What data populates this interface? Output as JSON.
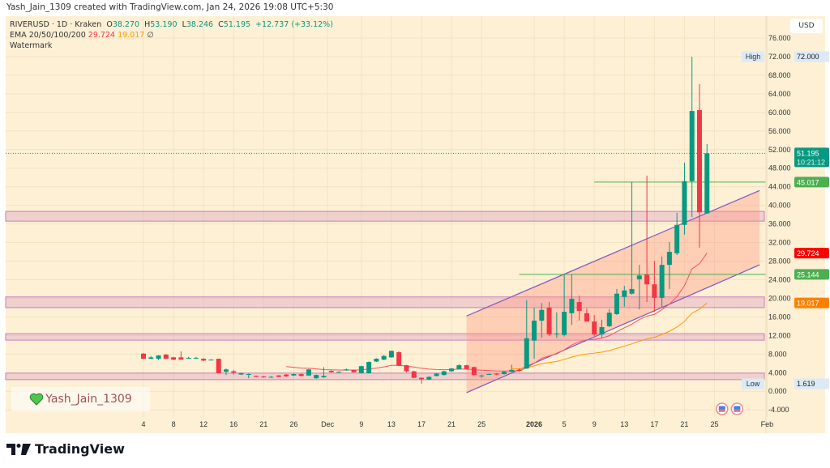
{
  "attribution": "Yash_Jain_1309 created with TradingView.com, Jan 24, 2026 19:08 UTC+5:30",
  "legend": {
    "symbol": "RIVERUSD · 1D · Kraken",
    "o_label": "O",
    "o": "38.270",
    "h_label": "H",
    "h": "53.190",
    "l_label": "L",
    "l": "38.246",
    "c_label": "C",
    "c": "51.195",
    "change": "+12.737 (+33.12%)",
    "ema_label": "EMA 20/50/100/200",
    "ema20": "29.724",
    "ema50": "19.017",
    "ema_rest": "∅",
    "watermark_label": "Watermark"
  },
  "watermark": {
    "icon": "green-heart-icon",
    "text": "Yash_Jain_1309"
  },
  "brand": {
    "text": "TradingView"
  },
  "price_axis": {
    "currency": "USD"
  },
  "colors": {
    "up": "#089981",
    "down": "#f23645",
    "ema20": "#f7525f",
    "ema50": "#ff9800",
    "channel": "#7e57c2",
    "zone": "#c97fc0",
    "background": "#fdf0d5"
  },
  "chart_data": {
    "type": "candlestick",
    "symbol": "RIVERUSD",
    "interval": "1D",
    "ylim": [
      -4,
      76
    ],
    "grid": true,
    "y_ticks": [
      "76.000",
      "72.000",
      "68.000",
      "64.000",
      "60.000",
      "56.000",
      "52.000",
      "48.000",
      "44.000",
      "40.000",
      "36.000",
      "32.000",
      "28.000",
      "24.000",
      "20.000",
      "16.000",
      "12.000",
      "8.000",
      "4.000",
      "0.000",
      "-4.000"
    ],
    "x_ticks": [
      {
        "label": "4",
        "at": 0
      },
      {
        "label": "8",
        "at": 4
      },
      {
        "label": "12",
        "at": 8
      },
      {
        "label": "16",
        "at": 12
      },
      {
        "label": "21",
        "at": 16
      },
      {
        "label": "26",
        "at": 20
      },
      {
        "label": "Dec",
        "at": 24.5
      },
      {
        "label": "9",
        "at": 29
      },
      {
        "label": "13",
        "at": 33
      },
      {
        "label": "17",
        "at": 37
      },
      {
        "label": "21",
        "at": 41
      },
      {
        "label": "25",
        "at": 45
      },
      {
        "label": "2026",
        "at": 52
      },
      {
        "label": "5",
        "at": 56
      },
      {
        "label": "9",
        "at": 60
      },
      {
        "label": "13",
        "at": 64
      },
      {
        "label": "17",
        "at": 68
      },
      {
        "label": "21",
        "at": 72
      },
      {
        "label": "25",
        "at": 76
      },
      {
        "label": "Feb",
        "at": 83
      }
    ],
    "candles": [
      {
        "o": 8.1,
        "h": 8.2,
        "l": 6.9,
        "c": 7.0
      },
      {
        "o": 7.0,
        "h": 7.6,
        "l": 6.9,
        "c": 7.3
      },
      {
        "o": 7.0,
        "h": 7.8,
        "l": 6.7,
        "c": 7.7
      },
      {
        "o": 7.9,
        "h": 8.0,
        "l": 6.9,
        "c": 7.0
      },
      {
        "o": 7.3,
        "h": 7.4,
        "l": 6.7,
        "c": 6.8
      },
      {
        "o": 7.3,
        "h": 8.6,
        "l": 6.8,
        "c": 6.8
      },
      {
        "o": 7.2,
        "h": 7.4,
        "l": 7.0,
        "c": 7.2
      },
      {
        "o": 7.2,
        "h": 7.4,
        "l": 7.0,
        "c": 7.2
      },
      {
        "o": 7.0,
        "h": 7.1,
        "l": 6.5,
        "c": 6.6
      },
      {
        "o": 6.8,
        "h": 6.9,
        "l": 6.7,
        "c": 6.8
      },
      {
        "o": 7.0,
        "h": 7.0,
        "l": 3.8,
        "c": 3.9
      },
      {
        "o": 4.2,
        "h": 4.9,
        "l": 3.5,
        "c": 4.7
      },
      {
        "o": 4.3,
        "h": 4.6,
        "l": 3.6,
        "c": 4.0
      },
      {
        "o": 3.6,
        "h": 4.0,
        "l": 3.5,
        "c": 3.9
      },
      {
        "o": 3.7,
        "h": 3.8,
        "l": 2.8,
        "c": 3.7
      },
      {
        "o": 3.3,
        "h": 3.4,
        "l": 3.0,
        "c": 3.1
      },
      {
        "o": 3.2,
        "h": 3.3,
        "l": 2.9,
        "c": 3.0
      },
      {
        "o": 3.1,
        "h": 3.3,
        "l": 2.9,
        "c": 3.1
      },
      {
        "o": 3.4,
        "h": 3.5,
        "l": 3.0,
        "c": 3.1
      },
      {
        "o": 3.6,
        "h": 3.7,
        "l": 3.1,
        "c": 3.2
      },
      {
        "o": 3.4,
        "h": 3.8,
        "l": 3.3,
        "c": 3.7
      },
      {
        "o": 3.7,
        "h": 3.8,
        "l": 3.2,
        "c": 3.3
      },
      {
        "o": 3.4,
        "h": 4.8,
        "l": 3.3,
        "c": 4.7
      },
      {
        "o": 2.8,
        "h": 3.6,
        "l": 2.7,
        "c": 3.5
      },
      {
        "o": 3.0,
        "h": 5.2,
        "l": 2.9,
        "c": 3.3
      },
      {
        "o": 4.4,
        "h": 4.5,
        "l": 4.0,
        "c": 4.1
      },
      {
        "o": 4.2,
        "h": 4.3,
        "l": 4.1,
        "c": 4.2
      },
      {
        "o": 4.5,
        "h": 4.9,
        "l": 4.4,
        "c": 4.7
      },
      {
        "o": 4.6,
        "h": 4.7,
        "l": 4.0,
        "c": 4.1
      },
      {
        "o": 3.9,
        "h": 5.5,
        "l": 3.8,
        "c": 5.4
      },
      {
        "o": 3.9,
        "h": 6.4,
        "l": 3.8,
        "c": 6.3
      },
      {
        "o": 6.4,
        "h": 7.1,
        "l": 6.3,
        "c": 7.0
      },
      {
        "o": 6.8,
        "h": 7.8,
        "l": 6.7,
        "c": 7.6
      },
      {
        "o": 7.3,
        "h": 8.7,
        "l": 7.2,
        "c": 8.7
      },
      {
        "o": 8.4,
        "h": 8.6,
        "l": 5.4,
        "c": 5.5
      },
      {
        "o": 5.6,
        "h": 5.7,
        "l": 4.1,
        "c": 4.3
      },
      {
        "o": 4.3,
        "h": 4.4,
        "l": 2.8,
        "c": 2.9
      },
      {
        "o": 2.9,
        "h": 3.0,
        "l": 1.619,
        "c": 2.6
      },
      {
        "o": 2.5,
        "h": 3.2,
        "l": 2.4,
        "c": 3.1
      },
      {
        "o": 3.3,
        "h": 3.9,
        "l": 3.2,
        "c": 3.8
      },
      {
        "o": 3.5,
        "h": 4.4,
        "l": 3.4,
        "c": 4.3
      },
      {
        "o": 4.3,
        "h": 5.0,
        "l": 4.2,
        "c": 4.9
      },
      {
        "o": 4.8,
        "h": 5.8,
        "l": 4.7,
        "c": 5.6
      },
      {
        "o": 5.6,
        "h": 5.7,
        "l": 4.7,
        "c": 4.8
      },
      {
        "o": 5.2,
        "h": 5.3,
        "l": 3.4,
        "c": 3.5
      },
      {
        "o": 3.4,
        "h": 3.6,
        "l": 2.9,
        "c": 3.4
      },
      {
        "o": 3.7,
        "h": 3.8,
        "l": 3.6,
        "c": 3.7
      },
      {
        "o": 3.8,
        "h": 3.9,
        "l": 3.5,
        "c": 3.6
      },
      {
        "o": 3.7,
        "h": 4.4,
        "l": 3.6,
        "c": 4.2
      },
      {
        "o": 4.2,
        "h": 5.7,
        "l": 4.1,
        "c": 4.6
      },
      {
        "o": 4.6,
        "h": 4.9,
        "l": 4.2,
        "c": 4.4
      },
      {
        "o": 4.9,
        "h": 19.6,
        "l": 4.8,
        "c": 11.4
      },
      {
        "o": 10.9,
        "h": 18.0,
        "l": 7.0,
        "c": 15.2
      },
      {
        "o": 15.2,
        "h": 19.0,
        "l": 11.5,
        "c": 17.5
      },
      {
        "o": 18.0,
        "h": 19.2,
        "l": 11.9,
        "c": 12.2
      },
      {
        "o": 12.4,
        "h": 17.0,
        "l": 11.5,
        "c": 12.4
      },
      {
        "o": 12.1,
        "h": 25.1,
        "l": 11.8,
        "c": 17.1
      },
      {
        "o": 16.8,
        "h": 25.1,
        "l": 14.3,
        "c": 19.9
      },
      {
        "o": 19.2,
        "h": 20.6,
        "l": 15.2,
        "c": 17.3
      },
      {
        "o": 16.8,
        "h": 17.8,
        "l": 15.0,
        "c": 15.0
      },
      {
        "o": 15.0,
        "h": 16.4,
        "l": 11.9,
        "c": 12.2
      },
      {
        "o": 12.2,
        "h": 15.4,
        "l": 11.5,
        "c": 13.8
      },
      {
        "o": 14.0,
        "h": 17.7,
        "l": 13.8,
        "c": 16.9
      },
      {
        "o": 16.6,
        "h": 22.0,
        "l": 16.4,
        "c": 21.0
      },
      {
        "o": 20.3,
        "h": 22.7,
        "l": 18.2,
        "c": 21.7
      },
      {
        "o": 21.0,
        "h": 45.0,
        "l": 20.8,
        "c": 22.0
      },
      {
        "o": 24.1,
        "h": 27.2,
        "l": 17.6,
        "c": 24.9
      },
      {
        "o": 25.1,
        "h": 46.4,
        "l": 19.2,
        "c": 23.0
      },
      {
        "o": 23.0,
        "h": 28.1,
        "l": 17.1,
        "c": 20.1
      },
      {
        "o": 20.1,
        "h": 29.0,
        "l": 18.0,
        "c": 27.2
      },
      {
        "o": 27.2,
        "h": 32.1,
        "l": 22.0,
        "c": 30.0
      },
      {
        "o": 29.7,
        "h": 38.4,
        "l": 29.3,
        "c": 35.8
      },
      {
        "o": 35.8,
        "h": 49.2,
        "l": 33.7,
        "c": 45.2
      },
      {
        "o": 45.2,
        "h": 72.0,
        "l": 37.5,
        "c": 60.3
      },
      {
        "o": 60.5,
        "h": 66.1,
        "l": 30.9,
        "c": 38.5
      },
      {
        "o": 38.27,
        "h": 53.19,
        "l": 38.246,
        "c": 51.195
      }
    ],
    "indicators": {
      "ema_lengths": [
        20,
        50
      ],
      "ema20_last": 29.724,
      "ema50_last": 19.017
    },
    "zones": [
      [
        36.6,
        38.7
      ],
      [
        18.0,
        20.3
      ],
      [
        11.0,
        12.4
      ],
      [
        2.5,
        3.9
      ]
    ],
    "channel": {
      "start": 43,
      "end": 82,
      "upper": [
        16.2,
        43.2
      ],
      "lower": [
        -0.3,
        27.2
      ]
    },
    "levels": [
      {
        "value": 45.017,
        "label": "45.017",
        "from": 60,
        "color": "#4caf50"
      },
      {
        "value": 25.144,
        "label": "25.144",
        "from": 50,
        "color": "#4caf50"
      }
    ],
    "badges": [
      {
        "value": 72.0,
        "label": "72.000",
        "tag": "High",
        "type": "info"
      },
      {
        "value": 51.195,
        "label": "51.195",
        "sub": "10:21:12",
        "color": "#089981"
      },
      {
        "value": 45.017,
        "label": "45.017",
        "color": "#4caf50"
      },
      {
        "value": 29.724,
        "label": "29.724",
        "color": "#ff0000"
      },
      {
        "value": 25.144,
        "label": "25.144",
        "color": "#4caf50"
      },
      {
        "value": 19.017,
        "label": "19.017",
        "color": "#ff7f00"
      },
      {
        "value": 1.619,
        "label": "1.619",
        "tag": "Low",
        "type": "info"
      }
    ],
    "events": [
      {
        "at": 77,
        "icon": "us-flag-icon"
      },
      {
        "at": 79,
        "icon": "us-flag-icon"
      }
    ]
  }
}
